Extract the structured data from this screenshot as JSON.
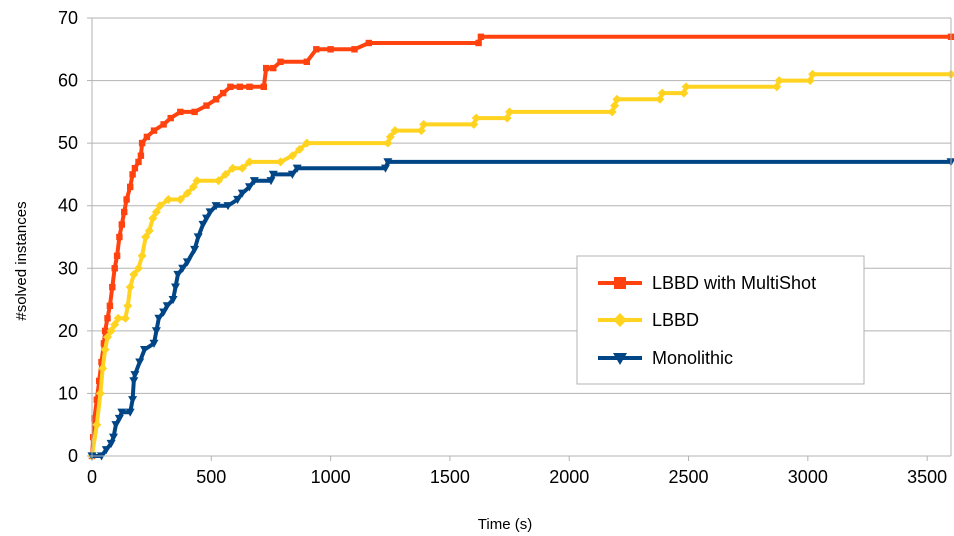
{
  "chart_data": {
    "type": "line",
    "xlabel": "Time (s)",
    "ylabel": "#solved instances",
    "xlim": [
      0,
      3600
    ],
    "ylim": [
      0,
      70
    ],
    "xticks": [
      0,
      500,
      1000,
      1500,
      2000,
      2500,
      3000,
      3500
    ],
    "yticks": [
      0,
      10,
      20,
      30,
      40,
      50,
      60,
      70
    ],
    "grid": "horizontal",
    "legend_position": "center-right",
    "series": [
      {
        "name": "LBBD with MultiShot",
        "color": "#ff420e",
        "marker": "square",
        "points": [
          [
            0,
            0
          ],
          [
            5,
            3
          ],
          [
            10,
            6
          ],
          [
            20,
            9
          ],
          [
            30,
            12
          ],
          [
            40,
            15
          ],
          [
            50,
            18
          ],
          [
            55,
            20
          ],
          [
            65,
            22
          ],
          [
            75,
            24
          ],
          [
            85,
            27
          ],
          [
            95,
            30
          ],
          [
            105,
            32
          ],
          [
            115,
            35
          ],
          [
            125,
            37
          ],
          [
            135,
            39
          ],
          [
            145,
            41
          ],
          [
            160,
            43
          ],
          [
            170,
            45
          ],
          [
            180,
            46
          ],
          [
            195,
            47
          ],
          [
            205,
            48
          ],
          [
            210,
            50
          ],
          [
            230,
            51
          ],
          [
            260,
            52
          ],
          [
            300,
            53
          ],
          [
            330,
            54
          ],
          [
            370,
            55
          ],
          [
            430,
            55
          ],
          [
            480,
            56
          ],
          [
            520,
            57
          ],
          [
            550,
            58
          ],
          [
            580,
            59
          ],
          [
            620,
            59
          ],
          [
            660,
            59
          ],
          [
            720,
            59
          ],
          [
            730,
            62
          ],
          [
            760,
            62
          ],
          [
            790,
            63
          ],
          [
            900,
            63
          ],
          [
            940,
            65
          ],
          [
            1000,
            65
          ],
          [
            1100,
            65
          ],
          [
            1160,
            66
          ],
          [
            1620,
            66
          ],
          [
            1630,
            67
          ],
          [
            3600,
            67
          ]
        ]
      },
      {
        "name": "LBBD",
        "color": "#ffd320",
        "marker": "diamond",
        "points": [
          [
            0,
            0
          ],
          [
            20,
            5
          ],
          [
            35,
            10
          ],
          [
            45,
            14
          ],
          [
            55,
            17
          ],
          [
            65,
            19
          ],
          [
            80,
            20
          ],
          [
            95,
            21
          ],
          [
            110,
            22
          ],
          [
            140,
            22
          ],
          [
            150,
            24
          ],
          [
            160,
            27
          ],
          [
            175,
            29
          ],
          [
            195,
            30
          ],
          [
            210,
            32
          ],
          [
            225,
            35
          ],
          [
            240,
            36
          ],
          [
            255,
            38
          ],
          [
            270,
            39
          ],
          [
            285,
            40
          ],
          [
            320,
            41
          ],
          [
            370,
            41
          ],
          [
            400,
            42
          ],
          [
            425,
            43
          ],
          [
            440,
            44
          ],
          [
            530,
            44
          ],
          [
            560,
            45
          ],
          [
            590,
            46
          ],
          [
            630,
            46
          ],
          [
            660,
            47
          ],
          [
            790,
            47
          ],
          [
            840,
            48
          ],
          [
            870,
            49
          ],
          [
            900,
            50
          ],
          [
            1240,
            50
          ],
          [
            1250,
            51
          ],
          [
            1270,
            52
          ],
          [
            1380,
            52
          ],
          [
            1390,
            53
          ],
          [
            1600,
            53
          ],
          [
            1610,
            54
          ],
          [
            1740,
            54
          ],
          [
            1750,
            55
          ],
          [
            2180,
            55
          ],
          [
            2190,
            56
          ],
          [
            2200,
            57
          ],
          [
            2380,
            57
          ],
          [
            2390,
            58
          ],
          [
            2480,
            58
          ],
          [
            2490,
            59
          ],
          [
            2870,
            59
          ],
          [
            2880,
            60
          ],
          [
            3010,
            60
          ],
          [
            3020,
            61
          ],
          [
            3600,
            61
          ]
        ]
      },
      {
        "name": "Monolithic",
        "color": "#004586",
        "marker": "triangle-down",
        "points": [
          [
            0,
            0
          ],
          [
            40,
            0
          ],
          [
            60,
            1
          ],
          [
            80,
            2
          ],
          [
            90,
            3
          ],
          [
            100,
            5
          ],
          [
            115,
            6
          ],
          [
            125,
            7
          ],
          [
            160,
            7
          ],
          [
            170,
            9
          ],
          [
            175,
            12
          ],
          [
            180,
            13
          ],
          [
            200,
            15
          ],
          [
            220,
            17
          ],
          [
            260,
            18
          ],
          [
            270,
            20
          ],
          [
            280,
            22
          ],
          [
            300,
            23
          ],
          [
            315,
            24
          ],
          [
            340,
            25
          ],
          [
            350,
            27
          ],
          [
            360,
            29
          ],
          [
            380,
            30
          ],
          [
            400,
            31
          ],
          [
            430,
            33
          ],
          [
            445,
            35
          ],
          [
            465,
            37
          ],
          [
            480,
            38
          ],
          [
            495,
            39
          ],
          [
            520,
            40
          ],
          [
            570,
            40
          ],
          [
            610,
            41
          ],
          [
            630,
            42
          ],
          [
            660,
            43
          ],
          [
            680,
            44
          ],
          [
            750,
            44
          ],
          [
            760,
            45
          ],
          [
            840,
            45
          ],
          [
            860,
            46
          ],
          [
            1230,
            46
          ],
          [
            1240,
            47
          ],
          [
            3600,
            47
          ]
        ]
      }
    ]
  }
}
